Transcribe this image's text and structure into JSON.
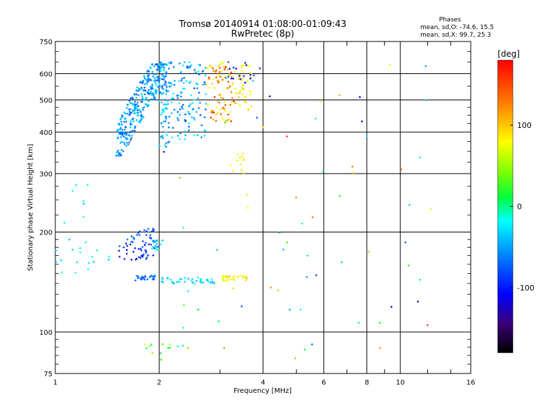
{
  "chart_data": {
    "type": "scatter",
    "title": "Tromsø 20140914 01:08:00-01:09:43",
    "subtitle": "RwPretec (8p)",
    "xlabel": "Frequency [MHz]",
    "ylabel": "Stationary phase Virtual Height [km]",
    "x_scale": "log",
    "y_scale": "log",
    "xlim": [
      1,
      16
    ],
    "ylim": [
      75,
      750
    ],
    "x_ticks": [
      1,
      2,
      4,
      6,
      8,
      10,
      16
    ],
    "x_minor_ticks": [
      3,
      5,
      7,
      9,
      12,
      14
    ],
    "y_ticks": [
      75,
      100,
      200,
      300,
      400,
      500,
      600,
      750
    ],
    "y_minor_ticks": [
      150,
      250,
      350
    ],
    "grid": true,
    "phases": {
      "heading": "Phases",
      "line_o": "mean, sd,O:  -74.6, 15.5",
      "line_x": "mean, sd,X:  99.7, 25.3"
    },
    "colorbar": {
      "unit": "[deg]",
      "range": [
        -180,
        180
      ],
      "ticks": [
        100,
        0,
        -100
      ],
      "colormap": "rainbow"
    },
    "clusters": [
      {
        "n": 340,
        "x": [
          1.5,
          2.1
        ],
        "y": [
          340,
          640
        ],
        "phase": [
          -120,
          -65
        ],
        "shape": "Ftrace"
      },
      {
        "n": 70,
        "x": [
          2.0,
          2.15
        ],
        "y": [
          360,
          650
        ],
        "phase": [
          -110,
          -60
        ]
      },
      {
        "n": 120,
        "x": [
          2.15,
          2.75
        ],
        "y": [
          380,
          650
        ],
        "phase": [
          -115,
          -55
        ]
      },
      {
        "n": 90,
        "x": [
          2.75,
          3.3
        ],
        "y": [
          430,
          650
        ],
        "phase": [
          90,
          170
        ]
      },
      {
        "n": 40,
        "x": [
          3.3,
          3.7
        ],
        "y": [
          470,
          640
        ],
        "phase": [
          85,
          120
        ]
      },
      {
        "n": 15,
        "x": [
          3.15,
          3.7
        ],
        "y": [
          560,
          650
        ],
        "phase": [
          -150,
          -110
        ]
      },
      {
        "n": 25,
        "x": [
          1.5,
          1.85
        ],
        "y": [
          165,
          185
        ],
        "phase": [
          -150,
          -110
        ]
      },
      {
        "n": 20,
        "x": [
          1.75,
          2.0
        ],
        "y": [
          170,
          200
        ],
        "phase": [
          -145,
          -100
        ]
      },
      {
        "n": 15,
        "x": [
          1.9,
          2.05
        ],
        "y": [
          175,
          190
        ],
        "phase": [
          -85,
          -55
        ]
      },
      {
        "n": 20,
        "x": [
          1.6,
          1.95
        ],
        "y": [
          185,
          205
        ],
        "phase": [
          -130,
          -95
        ]
      },
      {
        "n": 25,
        "x": [
          1.68,
          1.95
        ],
        "y": [
          143,
          148
        ],
        "phase": [
          -120,
          -95
        ]
      },
      {
        "n": 40,
        "x": [
          2.02,
          2.9
        ],
        "y": [
          140,
          146
        ],
        "phase": [
          -85,
          -60
        ]
      },
      {
        "n": 30,
        "x": [
          3.05,
          3.6
        ],
        "y": [
          142,
          148
        ],
        "phase": [
          85,
          120
        ]
      },
      {
        "n": 25,
        "x": [
          1.0,
          1.45
        ],
        "y": [
          150,
          290
        ],
        "phase": [
          -85,
          -55
        ]
      },
      {
        "n": 12,
        "x": [
          3.2,
          3.55
        ],
        "y": [
          300,
          345
        ],
        "phase": [
          80,
          110
        ]
      },
      {
        "n": 14,
        "x": [
          1.8,
          2.6
        ],
        "y": [
          86,
          92
        ],
        "phase": [
          -90,
          130
        ]
      },
      {
        "n": 70,
        "x": [
          2.0,
          13.0
        ],
        "y": [
          80,
          650
        ],
        "phase": [
          -160,
          170
        ],
        "shape": "sparse"
      }
    ]
  }
}
